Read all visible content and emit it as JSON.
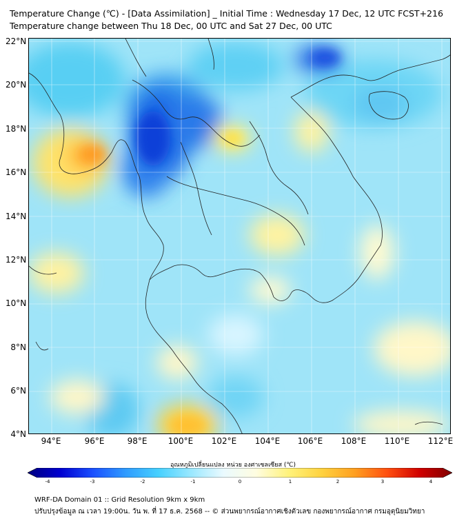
{
  "title_line1": "Temperature Change (℃) - [Data Assimilation] _ Initial Time : Wednesday 17 Dec, 12 UTC FCST+216",
  "title_line2": "Temperature change between Thu 18 Dec, 00 UTC and Sat 27 Dec, 00 UTC",
  "y_ticks": [
    "22°N",
    "20°N",
    "18°N",
    "16°N",
    "14°N",
    "12°N",
    "10°N",
    "8°N",
    "6°N",
    "4°N"
  ],
  "x_ticks": [
    "94°E",
    "96°E",
    "98°E",
    "100°E",
    "102°E",
    "104°E",
    "106°E",
    "108°E",
    "110°E",
    "112°E"
  ],
  "colorbar": {
    "title": "อุณหภูมิเปลี่ยนแปลง หน่วย องศาเซลเซียส (℃)",
    "ticks": [
      "-4",
      "-3",
      "-2",
      "-1",
      "0",
      "1",
      "2",
      "3",
      "4"
    ],
    "colors": [
      "#000080",
      "#0000d0",
      "#1a50ff",
      "#2f9bff",
      "#46d0ff",
      "#9ae8ff",
      "#eafaff",
      "#fffde0",
      "#fff27a",
      "#ffd23f",
      "#ffa020",
      "#ff5010",
      "#d00000",
      "#800000"
    ]
  },
  "footer_line1": "WRF-DA Domain 01 :: Grid Resolution 9km x 9km",
  "footer_line2": "ปรับปรุงข้อมูล ณ เวลา 19:00น. วัน พ. ที่ 17 ธ.ค. 2568 -- © ส่วนพยากรณ์อากาศเชิงตัวเลข กองพยากรณ์อากาศ กรมอุตุนิยมวิทยา"
}
